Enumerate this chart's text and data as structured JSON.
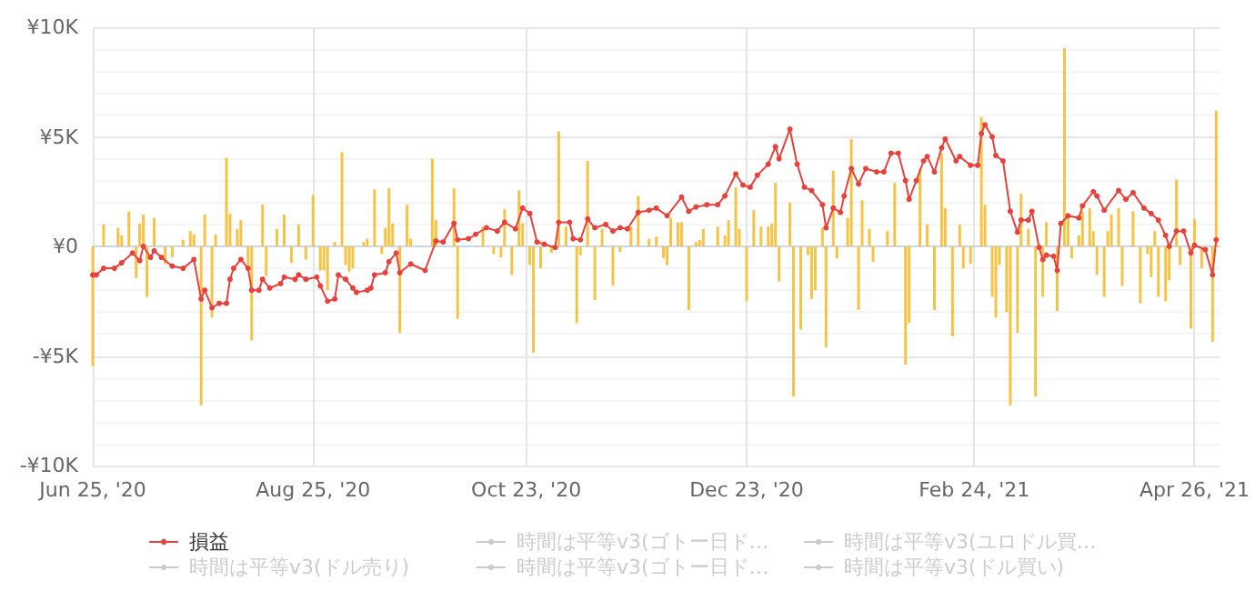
{
  "chart_data": {
    "type": "line",
    "xlim": [
      "2020-06-25",
      "2021-05-03"
    ],
    "xticks": [
      {
        "value": "2020-06-25",
        "label": "Jun 25, '20"
      },
      {
        "value": "2020-08-25",
        "label": "Aug 25, '20"
      },
      {
        "value": "2020-10-23",
        "label": "Oct 23, '20"
      },
      {
        "value": "2020-12-23",
        "label": "Dec 23, '20"
      },
      {
        "value": "2021-02-24",
        "label": "Feb 24, '21"
      },
      {
        "value": "2021-04-26",
        "label": "Apr 26, '21"
      }
    ],
    "ylim": [
      -10000,
      10000
    ],
    "yticks": [
      {
        "value": -10000,
        "label": "-¥10K"
      },
      {
        "value": -5000,
        "label": "-¥5K"
      },
      {
        "value": 0,
        "label": "¥0"
      },
      {
        "value": 5000,
        "label": "¥5K"
      },
      {
        "value": 10000,
        "label": "¥10K"
      }
    ],
    "grid": true,
    "legend": "bottom",
    "marker": "circle",
    "line_style": "solid",
    "series": [
      {
        "name": "損益",
        "color": "#e8413c",
        "x": [
          "2020-06-25",
          "2020-06-26",
          "2020-06-28",
          "2020-07-01",
          "2020-07-03",
          "2020-07-06",
          "2020-07-08",
          "2020-07-09",
          "2020-07-11",
          "2020-07-12",
          "2020-07-14",
          "2020-07-17",
          "2020-07-20",
          "2020-07-23",
          "2020-07-25",
          "2020-07-26",
          "2020-07-28",
          "2020-07-30",
          "2020-08-01",
          "2020-08-02",
          "2020-08-03",
          "2020-08-05",
          "2020-08-07",
          "2020-08-08",
          "2020-08-10",
          "2020-08-11",
          "2020-08-13",
          "2020-08-16",
          "2020-08-17",
          "2020-08-20",
          "2020-08-21",
          "2020-08-23",
          "2020-08-26",
          "2020-08-27",
          "2020-08-29",
          "2020-08-31",
          "2020-09-01",
          "2020-09-03",
          "2020-09-05",
          "2020-09-06",
          "2020-09-09",
          "2020-09-10",
          "2020-09-11",
          "2020-09-14",
          "2020-09-15",
          "2020-09-17",
          "2020-09-18",
          "2020-09-21",
          "2020-09-25",
          "2020-09-28",
          "2020-09-30",
          "2020-10-03",
          "2020-10-04",
          "2020-10-07",
          "2020-10-09",
          "2020-10-12",
          "2020-10-15",
          "2020-10-17",
          "2020-10-20",
          "2020-10-22",
          "2020-10-24",
          "2020-10-26",
          "2020-10-28",
          "2020-10-31",
          "2020-11-01",
          "2020-11-04",
          "2020-11-05",
          "2020-11-07",
          "2020-11-09",
          "2020-11-11",
          "2020-11-14",
          "2020-11-16",
          "2020-11-18",
          "2020-11-20",
          "2020-11-23",
          "2020-11-26",
          "2020-11-28",
          "2020-12-01",
          "2020-12-05",
          "2020-12-07",
          "2020-12-09",
          "2020-12-12",
          "2020-12-15",
          "2020-12-17",
          "2020-12-20",
          "2020-12-22",
          "2020-12-24",
          "2020-12-26",
          "2020-12-29",
          "2020-12-31",
          "2021-01-01",
          "2021-01-04",
          "2021-01-06",
          "2021-01-08",
          "2021-01-10",
          "2021-01-13",
          "2021-01-14",
          "2021-01-16",
          "2021-01-18",
          "2021-01-19",
          "2021-01-21",
          "2021-01-23",
          "2021-01-25",
          "2021-01-28",
          "2021-01-30",
          "2021-02-01",
          "2021-02-03",
          "2021-02-05",
          "2021-02-06",
          "2021-02-08",
          "2021-02-10",
          "2021-02-11",
          "2021-02-13",
          "2021-02-15",
          "2021-02-16",
          "2021-02-19",
          "2021-02-20",
          "2021-02-23",
          "2021-02-25",
          "2021-02-26",
          "2021-02-27",
          "2021-03-01",
          "2021-03-02",
          "2021-03-04",
          "2021-03-06",
          "2021-03-08",
          "2021-03-09",
          "2021-03-11",
          "2021-03-12",
          "2021-03-14",
          "2021-03-15",
          "2021-03-16",
          "2021-03-18",
          "2021-03-19",
          "2021-03-20",
          "2021-03-22",
          "2021-03-25",
          "2021-03-26",
          "2021-03-29",
          "2021-03-30",
          "2021-04-01",
          "2021-04-05",
          "2021-04-07",
          "2021-04-09",
          "2021-04-12",
          "2021-04-14",
          "2021-04-16",
          "2021-04-18",
          "2021-04-19",
          "2021-04-21",
          "2021-04-23",
          "2021-04-25",
          "2021-04-26",
          "2021-04-29",
          "2021-05-01",
          "2021-05-02"
        ],
        "values": [
          -1300,
          -1300,
          -1000,
          -1000,
          -750,
          -300,
          -650,
          0,
          -500,
          -200,
          -500,
          -900,
          -1000,
          -600,
          -2400,
          -2000,
          -2800,
          -2600,
          -2600,
          -1500,
          -1000,
          -600,
          -1000,
          -2000,
          -2000,
          -1500,
          -1900,
          -1700,
          -1400,
          -1500,
          -1300,
          -1500,
          -1400,
          -1800,
          -2500,
          -2400,
          -1300,
          -1500,
          -1900,
          -2100,
          -2000,
          -1900,
          -1300,
          -1200,
          -700,
          -300,
          -1200,
          -800,
          -1100,
          250,
          200,
          1050,
          300,
          350,
          550,
          850,
          700,
          1100,
          800,
          1750,
          1500,
          200,
          100,
          -50,
          1100,
          1100,
          350,
          300,
          1250,
          850,
          1000,
          700,
          850,
          800,
          1550,
          1650,
          1750,
          1400,
          2250,
          1600,
          1800,
          1900,
          1900,
          2300,
          3300,
          2800,
          2700,
          3250,
          3750,
          4550,
          4000,
          5350,
          3750,
          2700,
          2550,
          1900,
          850,
          1750,
          1550,
          2300,
          3550,
          2850,
          3550,
          3400,
          3400,
          4250,
          4250,
          3000,
          2150,
          3000,
          3900,
          4100,
          3400,
          4500,
          4900,
          3900,
          4100,
          3700,
          3700,
          5150,
          5550,
          5000,
          4150,
          3900,
          1600,
          650,
          1200,
          1200,
          1600,
          -50,
          -600,
          -400,
          -450,
          -1100,
          1050,
          1400,
          1300,
          1850,
          2500,
          2300,
          1650,
          2550,
          2150,
          2450,
          1750,
          1500,
          1200,
          500,
          0,
          700,
          700,
          -300,
          50,
          -150,
          -1300,
          300
        ]
      },
      {
        "type": "bar",
        "color": "#f6c344",
        "x": [
          "2020-06-25",
          "2020-06-28",
          "2020-07-02",
          "2020-07-03",
          "2020-07-05",
          "2020-07-07",
          "2020-07-08",
          "2020-07-09",
          "2020-07-10",
          "2020-07-12",
          "2020-07-15",
          "2020-07-17",
          "2020-07-20",
          "2020-07-22",
          "2020-07-23",
          "2020-07-25",
          "2020-07-26",
          "2020-07-28",
          "2020-07-29",
          "2020-08-01",
          "2020-08-02",
          "2020-08-04",
          "2020-08-05",
          "2020-08-07",
          "2020-08-08",
          "2020-08-11",
          "2020-08-12",
          "2020-08-15",
          "2020-08-17",
          "2020-08-19",
          "2020-08-21",
          "2020-08-23",
          "2020-08-25",
          "2020-08-27",
          "2020-08-28",
          "2020-08-29",
          "2020-08-31",
          "2020-09-02",
          "2020-09-03",
          "2020-09-04",
          "2020-09-05",
          "2020-09-08",
          "2020-09-09",
          "2020-09-11",
          "2020-09-13",
          "2020-09-14",
          "2020-09-15",
          "2020-09-16",
          "2020-09-18",
          "2020-09-20",
          "2020-09-21",
          "2020-09-27",
          "2020-09-28",
          "2020-10-03",
          "2020-10-04",
          "2020-10-11",
          "2020-10-14",
          "2020-10-16",
          "2020-10-17",
          "2020-10-19",
          "2020-10-21",
          "2020-10-22",
          "2020-10-24",
          "2020-10-25",
          "2020-10-27",
          "2020-10-30",
          "2020-11-01",
          "2020-11-03",
          "2020-11-06",
          "2020-11-07",
          "2020-11-09",
          "2020-11-11",
          "2020-11-13",
          "2020-11-16",
          "2020-11-18",
          "2020-11-21",
          "2020-11-23",
          "2020-11-26",
          "2020-11-28",
          "2020-11-30",
          "2020-12-01",
          "2020-12-02",
          "2020-12-04",
          "2020-12-05",
          "2020-12-07",
          "2020-12-09",
          "2020-12-10",
          "2020-12-11",
          "2020-12-15",
          "2020-12-17",
          "2020-12-18",
          "2020-12-20",
          "2020-12-21",
          "2020-12-23",
          "2020-12-25",
          "2020-12-27",
          "2020-12-29",
          "2020-12-30",
          "2020-12-31",
          "2021-01-01",
          "2021-01-04",
          "2021-01-05",
          "2021-01-07",
          "2021-01-09",
          "2021-01-10",
          "2021-01-11",
          "2021-01-13",
          "2021-01-14",
          "2021-01-16",
          "2021-01-17",
          "2021-01-20",
          "2021-01-21",
          "2021-01-23",
          "2021-01-24",
          "2021-01-26",
          "2021-01-27",
          "2021-01-31",
          "2021-02-02",
          "2021-02-05",
          "2021-02-06",
          "2021-02-09",
          "2021-02-11",
          "2021-02-13",
          "2021-02-15",
          "2021-02-16",
          "2021-02-18",
          "2021-02-20",
          "2021-02-21",
          "2021-02-23",
          "2021-02-26",
          "2021-02-27",
          "2021-03-01",
          "2021-03-02",
          "2021-03-03",
          "2021-03-05",
          "2021-03-06",
          "2021-03-08",
          "2021-03-09",
          "2021-03-11",
          "2021-03-13",
          "2021-03-15",
          "2021-03-16",
          "2021-03-19",
          "2021-03-21",
          "2021-03-22",
          "2021-03-23",
          "2021-03-25",
          "2021-03-26",
          "2021-03-28",
          "2021-03-29",
          "2021-03-30",
          "2021-04-01",
          "2021-04-02",
          "2021-04-03",
          "2021-04-05",
          "2021-04-06",
          "2021-04-09",
          "2021-04-11",
          "2021-04-13",
          "2021-04-14",
          "2021-04-15",
          "2021-04-16",
          "2021-04-18",
          "2021-04-19",
          "2021-04-21",
          "2021-04-22",
          "2021-04-25",
          "2021-04-26",
          "2021-04-28",
          "2021-05-01",
          "2021-05-02"
        ],
        "values": [
          -5450,
          1000,
          850,
          500,
          1600,
          -1450,
          1050,
          1450,
          -2300,
          1300,
          -800,
          -500,
          300,
          700,
          550,
          -7250,
          1450,
          -3250,
          550,
          4050,
          1500,
          800,
          1200,
          -850,
          -4300,
          1900,
          -1350,
          800,
          1450,
          -750,
          1000,
          -600,
          2350,
          -1100,
          -1100,
          -2000,
          200,
          4300,
          -850,
          -1150,
          -1000,
          200,
          350,
          2600,
          -350,
          850,
          2650,
          1050,
          -3950,
          1900,
          350,
          4000,
          1200,
          2650,
          -3300,
          900,
          -350,
          -500,
          1700,
          -1300,
          2550,
          1050,
          -850,
          -4850,
          -1000,
          -300,
          5250,
          900,
          -3500,
          -400,
          3900,
          -2450,
          800,
          -1800,
          -250,
          900,
          2300,
          350,
          450,
          -550,
          -850,
          1300,
          1100,
          1100,
          -2900,
          200,
          300,
          800,
          900,
          500,
          1200,
          2700,
          800,
          -2500,
          1650,
          900,
          900,
          1050,
          2900,
          -1600,
          2000,
          -6850,
          -3800,
          -400,
          -2400,
          -2000,
          850,
          -4600,
          3450,
          -550,
          1300,
          4900,
          -2900,
          2100,
          800,
          -700,
          700,
          2900,
          -5400,
          -3500,
          3550,
          1000,
          -2900,
          4250,
          1750,
          -4100,
          1000,
          -1000,
          -800,
          5900,
          1900,
          -2300,
          -3250,
          -850,
          -3000,
          -7250,
          -3950,
          2400,
          800,
          -6850,
          -2300,
          1100,
          -2950,
          9050,
          1450,
          -550,
          500,
          1600,
          1750,
          700,
          -1300,
          -2300,
          700,
          1450,
          1750,
          -1800,
          1600,
          -2600,
          -350,
          -1400,
          700,
          -2300,
          -2500,
          -1550,
          3050,
          -850,
          -3750,
          1250,
          -1000,
          -4350,
          6200
        ]
      },
      {
        "name": "時間は平等v3(ゴトー日ド…",
        "color": "#cccccc"
      },
      {
        "name": "時間は平等v3(ユロドル買…",
        "color": "#cccccc"
      },
      {
        "name": "時間は平等v3(ドル売り)",
        "color": "#cccccc"
      },
      {
        "name": "時間は平等v3(ゴトー日ド…",
        "color": "#cccccc"
      },
      {
        "name": "時間は平等v3(ドル買い)",
        "color": "#cccccc"
      }
    ]
  }
}
